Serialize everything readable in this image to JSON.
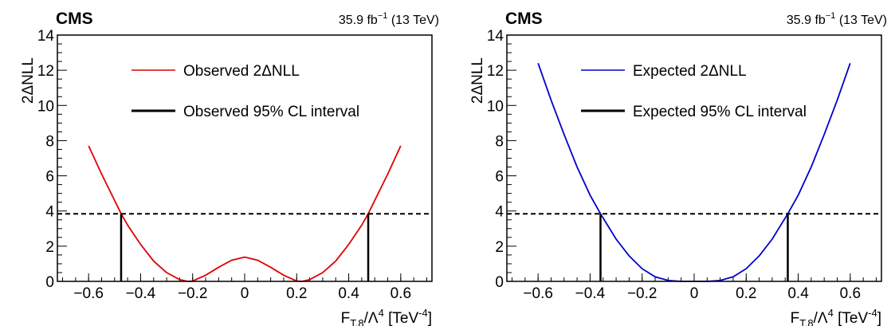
{
  "chart_data": [
    {
      "type": "line",
      "experiment": "CMS",
      "lumi_value": "35.9",
      "lumi_unit_base": "fb",
      "lumi_unit_exp": "−1",
      "energy": "(13 TeV)",
      "ylabel": "2ΔNLL",
      "xlabel_main": "F",
      "xlabel_sub": "T,8",
      "xlabel_div": "/Λ",
      "xlabel_pow": "4",
      "xlabel_unit": " [TeV",
      "xlabel_unit_pow": "-4",
      "xlabel_close": "]",
      "xlim": [
        -0.72,
        0.72
      ],
      "ylim": [
        0,
        14
      ],
      "xticks": [
        -0.6,
        -0.4,
        -0.2,
        0,
        0.2,
        0.4,
        0.6
      ],
      "xtick_labels": [
        "−0.6",
        "−0.4",
        "−0.2",
        "0",
        "0.2",
        "0.4",
        "0.6"
      ],
      "yticks": [
        0,
        2,
        4,
        6,
        8,
        10,
        12,
        14
      ],
      "ytick_labels": [
        "0",
        "2",
        "4",
        "6",
        "8",
        "10",
        "12",
        "14"
      ],
      "series": [
        {
          "name": "Observed 2ΔNLL",
          "color": "#e00000",
          "x": [
            -0.6,
            -0.55,
            -0.5,
            -0.475,
            -0.45,
            -0.4,
            -0.35,
            -0.3,
            -0.25,
            -0.22,
            -0.2,
            -0.15,
            -0.1,
            -0.05,
            0,
            0.05,
            0.1,
            0.15,
            0.2,
            0.22,
            0.25,
            0.3,
            0.35,
            0.4,
            0.45,
            0.475,
            0.5,
            0.55,
            0.6
          ],
          "y": [
            7.7,
            6.1,
            4.6,
            3.84,
            3.2,
            2.1,
            1.15,
            0.5,
            0.1,
            0.0,
            0.02,
            0.35,
            0.8,
            1.2,
            1.38,
            1.2,
            0.8,
            0.35,
            0.02,
            0.0,
            0.1,
            0.5,
            1.15,
            2.1,
            3.2,
            3.84,
            4.6,
            6.1,
            7.7
          ]
        }
      ],
      "threshold": 3.84,
      "interval_name": "Observed 95% CL interval",
      "interval": [
        -0.475,
        0.475
      ],
      "legend_position": "top-center"
    },
    {
      "type": "line",
      "experiment": "CMS",
      "lumi_value": "35.9",
      "lumi_unit_base": "fb",
      "lumi_unit_exp": "−1",
      "energy": "(13 TeV)",
      "ylabel": "2ΔNLL",
      "xlabel_main": "F",
      "xlabel_sub": "T,8",
      "xlabel_div": "/Λ",
      "xlabel_pow": "4",
      "xlabel_unit": " [TeV",
      "xlabel_unit_pow": "-4",
      "xlabel_close": "]",
      "xlim": [
        -0.72,
        0.72
      ],
      "ylim": [
        0,
        14
      ],
      "xticks": [
        -0.6,
        -0.4,
        -0.2,
        0,
        0.2,
        0.4,
        0.6
      ],
      "xtick_labels": [
        "−0.6",
        "−0.4",
        "−0.2",
        "0",
        "0.2",
        "0.4",
        "0.6"
      ],
      "yticks": [
        0,
        2,
        4,
        6,
        8,
        10,
        12,
        14
      ],
      "ytick_labels": [
        "0",
        "2",
        "4",
        "6",
        "8",
        "10",
        "12",
        "14"
      ],
      "series": [
        {
          "name": "Expected 2ΔNLL",
          "color": "#0000cc",
          "x": [
            -0.6,
            -0.55,
            -0.5,
            -0.45,
            -0.4,
            -0.36,
            -0.3,
            -0.25,
            -0.2,
            -0.15,
            -0.1,
            -0.05,
            0,
            0.05,
            0.1,
            0.15,
            0.2,
            0.25,
            0.3,
            0.36,
            0.4,
            0.45,
            0.5,
            0.55,
            0.6
          ],
          "y": [
            12.4,
            10.3,
            8.35,
            6.5,
            4.9,
            3.84,
            2.4,
            1.45,
            0.72,
            0.26,
            0.05,
            0.0,
            0.0,
            0.0,
            0.05,
            0.26,
            0.72,
            1.45,
            2.4,
            3.84,
            4.9,
            6.5,
            8.35,
            10.3,
            12.4
          ]
        }
      ],
      "threshold": 3.84,
      "interval_name": "Expected 95% CL interval",
      "interval": [
        -0.36,
        0.36
      ],
      "legend_position": "top-center"
    }
  ]
}
